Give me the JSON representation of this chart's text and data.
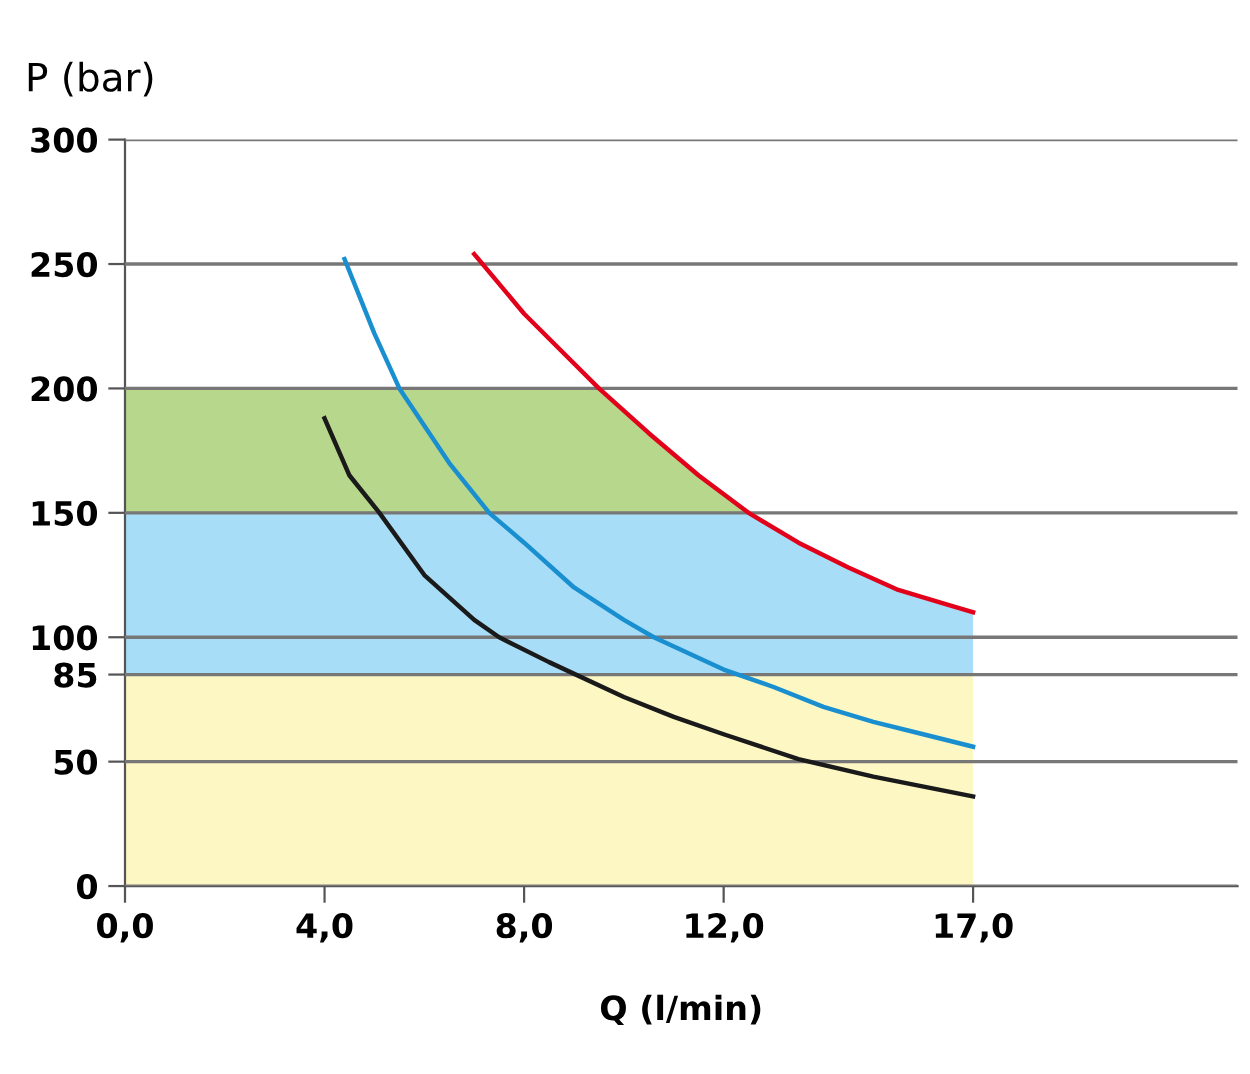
{
  "chart_data": {
    "type": "line",
    "xlabel": "Q (l/min)",
    "ylabel": "P (bar)",
    "xlim": [
      0,
      22.3
    ],
    "ylim": [
      0,
      300
    ],
    "xticks": [
      {
        "value": 0,
        "label": "0,0"
      },
      {
        "value": 4,
        "label": "4,0"
      },
      {
        "value": 8,
        "label": "8,0"
      },
      {
        "value": 12,
        "label": "12,0"
      },
      {
        "value": 17,
        "label": "17,0"
      }
    ],
    "yticks": [
      0,
      50,
      85,
      100,
      150,
      200,
      250,
      300
    ],
    "grid": "y",
    "marker": "none",
    "line_style": "solid",
    "bands": [
      {
        "axis": "y",
        "from": 0,
        "to": 85,
        "color": "#fdf7c3"
      },
      {
        "axis": "y",
        "from": 85,
        "to": 150,
        "color": "#a8ddf8"
      },
      {
        "axis": "y",
        "from": 150,
        "to": 200,
        "color": "#b7d78c"
      }
    ],
    "series": [
      {
        "color": "#e2001a",
        "x": [
          7,
          8,
          9,
          9.5,
          10.5,
          11.5,
          12.5,
          13.5,
          14.5,
          15.5,
          16.5,
          17
        ],
        "values": [
          254,
          230,
          210,
          200,
          182,
          165,
          150,
          138,
          128,
          119,
          113,
          110
        ]
      },
      {
        "color": "#1a8fd0",
        "x": [
          4.4,
          5,
          5.5,
          6.5,
          7.3,
          8,
          9,
          10,
          10.6,
          12,
          13,
          14,
          15,
          16,
          17
        ],
        "values": [
          252,
          222,
          200,
          170,
          150,
          138,
          120,
          107,
          100,
          87,
          80,
          72,
          66,
          61,
          56
        ]
      },
      {
        "color": "#1a1a1a",
        "x": [
          4,
          4.5,
          5.1,
          6,
          7,
          7.5,
          8.5,
          10,
          11,
          12,
          13.5,
          15,
          17
        ],
        "values": [
          188,
          165,
          150,
          125,
          107,
          100,
          90,
          76,
          68,
          61,
          51,
          44,
          36
        ]
      }
    ]
  }
}
